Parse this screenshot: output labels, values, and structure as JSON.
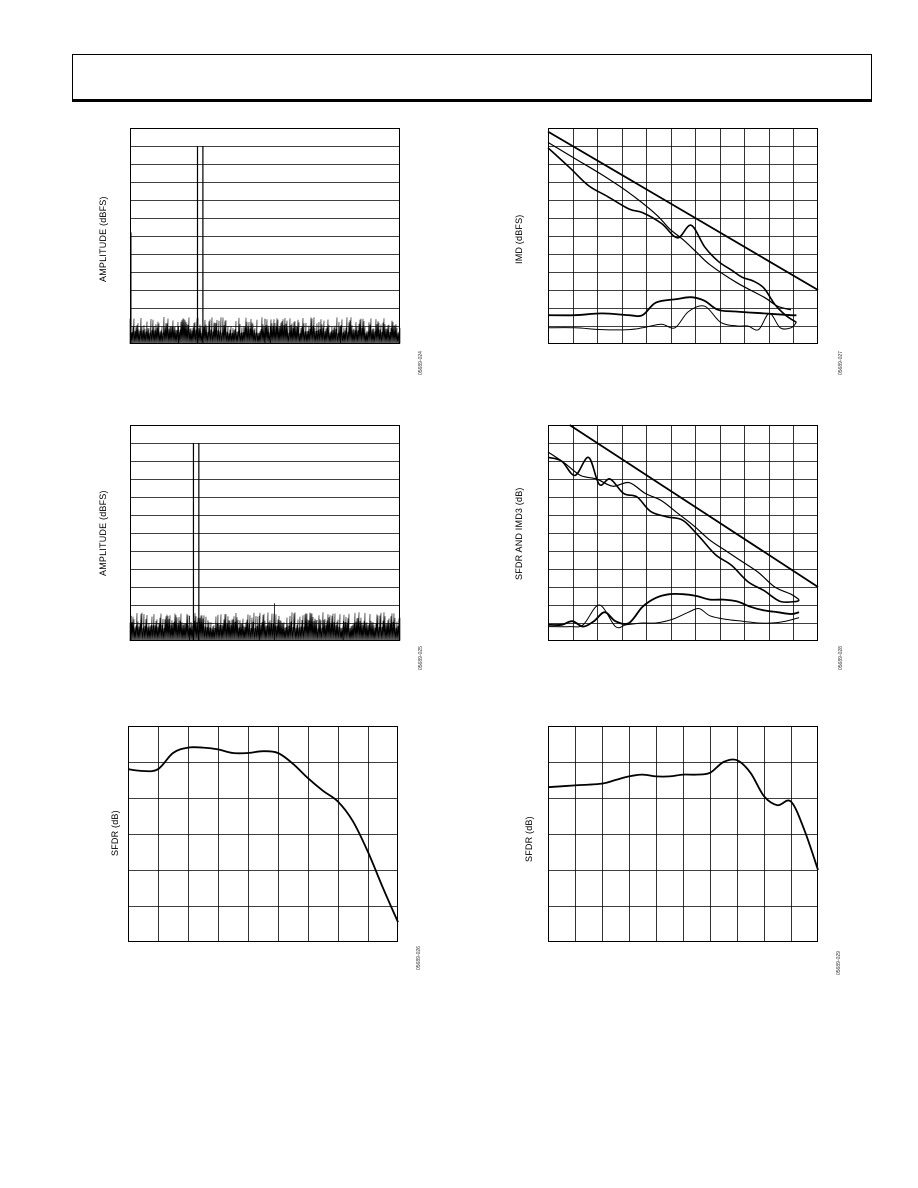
{
  "page": {
    "header_text": ""
  },
  "charts": [
    {
      "id": "c1",
      "ylabel": "AMPLITUDE (dBFS)",
      "figure_id": "05689-024"
    },
    {
      "id": "c2",
      "ylabel": "IMD (dBFS)",
      "figure_id": "05689-027"
    },
    {
      "id": "c3",
      "ylabel": "AMPLITUDE (dBFS)",
      "figure_id": "05689-025"
    },
    {
      "id": "c4",
      "ylabel": "SFDR AND IMD3 (dB)",
      "figure_id": "05689-028"
    },
    {
      "id": "c5",
      "ylabel": "SFDR (dB)",
      "figure_id": "05689-026"
    },
    {
      "id": "c6",
      "ylabel": "SFDR (dB)",
      "figure_id": "05689-029"
    }
  ],
  "chart_data": [
    {
      "type": "bar",
      "ylabel": "AMPLITUDE (dBFS)",
      "grid": true,
      "xlim": [
        0,
        1
      ],
      "ylim": [
        0,
        12
      ],
      "note": "FFT spectrum",
      "tones": [
        {
          "x": 0.25,
          "y": 11
        },
        {
          "x": 0.27,
          "y": 11
        }
      ],
      "spurs": [
        {
          "x": 0.18,
          "y": 1.0
        },
        {
          "x": 0.5,
          "y": 1.4
        },
        {
          "x": 0.52,
          "y": 1.0
        },
        {
          "x": 0.78,
          "y": 1.0
        }
      ],
      "dc_spike": 6.2,
      "noise_floor": 0.6
    },
    {
      "type": "line",
      "ylabel": "IMD (dBFS)",
      "grid": true,
      "xlim": [
        0,
        10
      ],
      "ylim": [
        0,
        12
      ],
      "series": [
        {
          "x": [
            0,
            10
          ],
          "y": [
            11.8,
            3.0
          ]
        },
        {
          "x": [
            0,
            1,
            2,
            3,
            4,
            4.5,
            5,
            5.5,
            6,
            7,
            8,
            8.5,
            9
          ],
          "y": [
            11.2,
            10.3,
            9.4,
            8.4,
            7.2,
            6.4,
            5.8,
            5.1,
            4.4,
            3.4,
            2.6,
            2.1,
            1.9
          ]
        },
        {
          "x": [
            0,
            0.8,
            1.5,
            2.2,
            3,
            3.5,
            4.2,
            4.8,
            5.3,
            5.8,
            6.3,
            6.8,
            7.2,
            7.6,
            8,
            8.4,
            8.8,
            9.2
          ],
          "y": [
            10.9,
            9.8,
            8.8,
            8.2,
            7.5,
            7.3,
            6.7,
            5.9,
            6.6,
            5.4,
            4.6,
            4.1,
            3.7,
            3.5,
            3.1,
            2.2,
            1.6,
            1.2
          ]
        },
        {
          "x": [
            0,
            1,
            2,
            3,
            3.5,
            4,
            4.8,
            5.3,
            5.8,
            6.3,
            7,
            8,
            9,
            9.2
          ],
          "y": [
            1.6,
            1.6,
            1.7,
            1.6,
            1.6,
            2.3,
            2.5,
            2.6,
            2.4,
            1.9,
            1.8,
            1.7,
            1.6,
            1.6
          ]
        },
        {
          "x": [
            0,
            1,
            2,
            3,
            3.5,
            4.2,
            4.7,
            5.2,
            5.8,
            6.4,
            7,
            7.4,
            7.8,
            8.2,
            8.6,
            9,
            9.2
          ],
          "y": [
            0.9,
            0.9,
            0.8,
            0.8,
            0.9,
            1.1,
            0.9,
            1.8,
            2.1,
            1.2,
            1.0,
            1.0,
            0.8,
            1.7,
            0.9,
            0.9,
            1.2
          ]
        }
      ]
    },
    {
      "type": "bar",
      "ylabel": "AMPLITUDE (dBFS)",
      "grid": true,
      "xlim": [
        0,
        1
      ],
      "ylim": [
        0,
        12
      ],
      "note": "FFT spectrum",
      "tones": [
        {
          "x": 0.235,
          "y": 11
        },
        {
          "x": 0.255,
          "y": 11
        }
      ],
      "spurs": [
        {
          "x": 0.22,
          "y": 1.4
        },
        {
          "x": 0.48,
          "y": 1.4
        },
        {
          "x": 0.535,
          "y": 2.1
        },
        {
          "x": 0.79,
          "y": 1.1
        }
      ],
      "dc_spike": 1.4,
      "noise_floor": 0.7
    },
    {
      "type": "line",
      "ylabel": "SFDR AND IMD3 (dB)",
      "grid": true,
      "xlim": [
        0,
        10
      ],
      "ylim": [
        0,
        12
      ],
      "series": [
        {
          "x": [
            0.8,
            10
          ],
          "y": [
            12.0,
            3.0
          ]
        },
        {
          "x": [
            0,
            0.6,
            1.2,
            1.8,
            2.4,
            3,
            3.6,
            4.2,
            4.8,
            5.4,
            6,
            6.6,
            7.2,
            7.8,
            8.4,
            9,
            9.3
          ],
          "y": [
            10.5,
            9.9,
            9.2,
            9.0,
            8.6,
            8.8,
            8.2,
            7.8,
            7.1,
            6.4,
            5.6,
            5.0,
            4.4,
            3.8,
            3.0,
            2.6,
            2.3
          ]
        },
        {
          "x": [
            0,
            0.5,
            1,
            1.5,
            1.9,
            2.3,
            2.8,
            3.3,
            3.8,
            4.4,
            5,
            5.6,
            6.2,
            6.8,
            7.4,
            8,
            8.6,
            9.2,
            9.3
          ],
          "y": [
            10.2,
            10.0,
            9.2,
            10.2,
            8.7,
            9.0,
            8.2,
            8.0,
            7.2,
            6.9,
            6.7,
            5.8,
            4.8,
            4.2,
            3.3,
            2.8,
            2.2,
            2.2,
            2.3
          ]
        },
        {
          "x": [
            0,
            0.5,
            0.9,
            1.3,
            1.7,
            2.1,
            2.5,
            3,
            3.5,
            4,
            4.5,
            5,
            5.5,
            6,
            6.5,
            7,
            7.5,
            8,
            8.5,
            9,
            9.3
          ],
          "y": [
            0.9,
            0.9,
            1.1,
            0.8,
            1.1,
            1.6,
            1.1,
            1.0,
            1.9,
            2.4,
            2.6,
            2.6,
            2.5,
            2.3,
            2.3,
            2.2,
            1.9,
            1.7,
            1.6,
            1.5,
            1.6
          ]
        },
        {
          "x": [
            0,
            0.8,
            1.3,
            1.9,
            2.5,
            2.9,
            3.5,
            4,
            4.6,
            5.2,
            5.6,
            6,
            6.6,
            7.2,
            7.8,
            8.3,
            8.8,
            9.3
          ],
          "y": [
            0.8,
            0.8,
            0.9,
            2.0,
            0.8,
            0.9,
            1.0,
            1.0,
            1.2,
            1.6,
            1.8,
            1.4,
            1.2,
            1.1,
            1.0,
            1.0,
            1.1,
            1.3
          ]
        }
      ]
    },
    {
      "type": "line",
      "ylabel": "SFDR (dB)",
      "grid": true,
      "xlim": [
        0,
        9
      ],
      "ylim": [
        0,
        6
      ],
      "series": [
        {
          "x": [
            0,
            0.5,
            1,
            1.5,
            2,
            2.5,
            3,
            3.5,
            4,
            4.5,
            5,
            5.5,
            6,
            6.5,
            7,
            7.5,
            8,
            8.5,
            9
          ],
          "y": [
            4.8,
            4.75,
            4.8,
            5.25,
            5.4,
            5.4,
            5.35,
            5.25,
            5.25,
            5.3,
            5.25,
            4.95,
            4.55,
            4.2,
            3.9,
            3.35,
            2.5,
            1.5,
            0.55
          ]
        }
      ]
    },
    {
      "type": "line",
      "ylabel": "SFDR (dB)",
      "grid": true,
      "xlim": [
        0,
        10
      ],
      "ylim": [
        0,
        6
      ],
      "series": [
        {
          "x": [
            0,
            1,
            2,
            2.5,
            3,
            3.5,
            4,
            4.5,
            5,
            5.5,
            6,
            6.5,
            7,
            7.5,
            8,
            8.5,
            9,
            9.5,
            10
          ],
          "y": [
            4.3,
            4.35,
            4.4,
            4.5,
            4.6,
            4.65,
            4.6,
            4.6,
            4.65,
            4.65,
            4.7,
            5.0,
            5.05,
            4.7,
            4.05,
            3.8,
            3.9,
            3.1,
            2.0
          ]
        }
      ]
    }
  ]
}
